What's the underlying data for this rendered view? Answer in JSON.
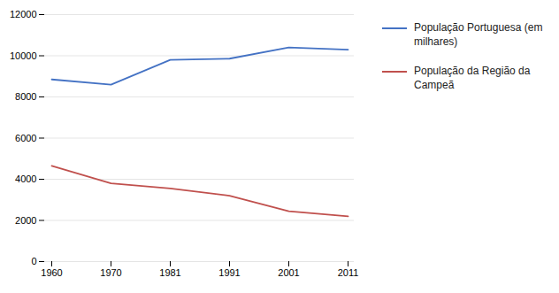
{
  "chart_data": {
    "type": "line",
    "categories": [
      "1960",
      "1970",
      "1981",
      "1991",
      "2001",
      "2011"
    ],
    "series": [
      {
        "name": "População Portuguesa (em\nmilhares)",
        "color": "#4472C4",
        "values": [
          8850,
          8600,
          9800,
          9860,
          10400,
          10300
        ]
      },
      {
        "name": "População da Região da\nCampeã",
        "color": "#C0504D",
        "values": [
          4650,
          3800,
          3550,
          3200,
          2450,
          2200
        ]
      }
    ],
    "ylim": [
      0,
      12000
    ],
    "yticks": [
      0,
      2000,
      4000,
      6000,
      8000,
      10000,
      12000
    ],
    "grid": true,
    "legend": "right"
  }
}
